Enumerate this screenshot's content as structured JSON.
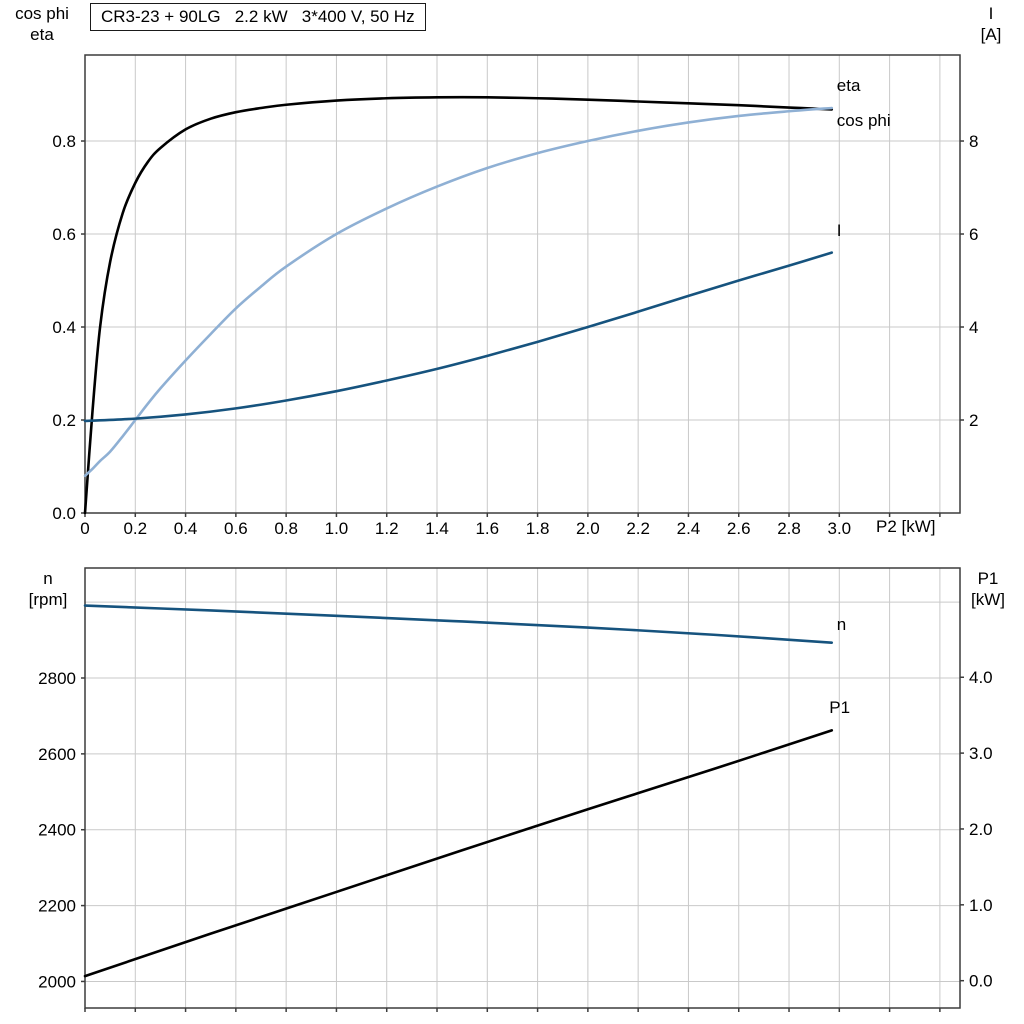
{
  "title": "CR3-23 + 90LG   2.2 kW   3*400 V, 50 Hz",
  "axis_labels": {
    "top_left_line1": "cos phi",
    "top_left_line2": "eta",
    "top_right_line1": "I",
    "top_right_line2": "[A]",
    "x_axis": "P2 [kW]",
    "bottom_left_line1": "n",
    "bottom_left_line2": "[rpm]",
    "bottom_right_line1": "P1",
    "bottom_right_line2": "[kW]"
  },
  "colors": {
    "eta_curve": "#000000",
    "cos_phi_curve": "#8fb0d4",
    "current_curve": "#16537e",
    "n_curve": "#16537e",
    "p1_curve": "#000000",
    "grid": "#c9c9c9",
    "border": "#3c3c3c",
    "background": "#ffffff"
  },
  "chart_data": [
    {
      "type": "line",
      "title": "CR3-23 + 90LG   2.2 kW   3*400 V, 50 Hz",
      "xlabel": "P2 [kW]",
      "ylabel_left": "cos phi / eta",
      "ylabel_right": "I [A]",
      "grid": true,
      "xlim": [
        0,
        3.48
      ],
      "xticks": [
        0,
        0.2,
        0.4,
        0.6,
        0.8,
        1.0,
        1.2,
        1.4,
        1.6,
        1.8,
        2.0,
        2.2,
        2.4,
        2.6,
        2.8,
        3.0,
        3.2,
        3.4
      ],
      "xtick_labels": [
        "0",
        "0.2",
        "0.4",
        "0.6",
        "0.8",
        "1.0",
        "1.2",
        "1.4",
        "1.6",
        "1.8",
        "2.0",
        "2.2",
        "2.4",
        "2.6",
        "2.8",
        "3.0",
        "",
        ""
      ],
      "ylim_left": [
        0,
        0.985
      ],
      "yticks_left": [
        0,
        0.2,
        0.4,
        0.6,
        0.8
      ],
      "ytick_labels_left": [
        "0.0",
        "0.2",
        "0.4",
        "0.6",
        "0.8"
      ],
      "ylim_right": [
        0,
        9.85
      ],
      "yticks_right": [
        2,
        4,
        6,
        8
      ],
      "ytick_labels_right": [
        "2",
        "4",
        "6",
        "8"
      ],
      "series": [
        {
          "name": "eta",
          "label": "eta",
          "axis": "left",
          "color": "eta_curve",
          "label_pos": [
            2.99,
            0.908
          ],
          "x": [
            0,
            0.03,
            0.06,
            0.1,
            0.15,
            0.2,
            0.25,
            0.3,
            0.4,
            0.5,
            0.6,
            0.7,
            0.8,
            1.0,
            1.2,
            1.4,
            1.6,
            1.8,
            2.0,
            2.2,
            2.4,
            2.6,
            2.8,
            2.97
          ],
          "y": [
            0,
            0.22,
            0.4,
            0.54,
            0.645,
            0.71,
            0.755,
            0.785,
            0.825,
            0.848,
            0.862,
            0.871,
            0.878,
            0.887,
            0.892,
            0.894,
            0.894,
            0.892,
            0.889,
            0.885,
            0.881,
            0.877,
            0.872,
            0.868
          ]
        },
        {
          "name": "cos phi",
          "label": "cos phi",
          "axis": "left",
          "color": "cos_phi_curve",
          "label_pos": [
            2.99,
            0.832
          ],
          "x": [
            0,
            0.03,
            0.06,
            0.1,
            0.15,
            0.2,
            0.25,
            0.3,
            0.4,
            0.5,
            0.6,
            0.7,
            0.8,
            1.0,
            1.2,
            1.4,
            1.6,
            1.8,
            2.0,
            2.2,
            2.4,
            2.6,
            2.8,
            2.97
          ],
          "y": [
            0.08,
            0.095,
            0.112,
            0.132,
            0.165,
            0.2,
            0.235,
            0.268,
            0.328,
            0.385,
            0.44,
            0.487,
            0.53,
            0.6,
            0.655,
            0.702,
            0.742,
            0.774,
            0.8,
            0.822,
            0.84,
            0.854,
            0.864,
            0.871
          ]
        },
        {
          "name": "I",
          "label": "I",
          "axis": "right",
          "color": "current_curve",
          "label_pos": [
            2.99,
            5.96
          ],
          "x": [
            0,
            0.2,
            0.4,
            0.6,
            0.8,
            1.0,
            1.2,
            1.4,
            1.6,
            1.8,
            2.0,
            2.2,
            2.4,
            2.6,
            2.8,
            2.97
          ],
          "y": [
            1.98,
            2.03,
            2.12,
            2.25,
            2.42,
            2.62,
            2.85,
            3.1,
            3.38,
            3.68,
            4.0,
            4.33,
            4.67,
            5.0,
            5.32,
            5.6
          ]
        }
      ]
    },
    {
      "type": "line",
      "title": "",
      "xlabel": "",
      "ylabel_left": "n [rpm]",
      "ylabel_right": "P1 [kW]",
      "grid": true,
      "xlim": [
        0,
        3.48
      ],
      "xticks": [
        0,
        0.2,
        0.4,
        0.6,
        0.8,
        1.0,
        1.2,
        1.4,
        1.6,
        1.8,
        2.0,
        2.2,
        2.4,
        2.6,
        2.8,
        3.0,
        3.2,
        3.4
      ],
      "xtick_labels": [],
      "ylim_left": [
        1930,
        3090
      ],
      "yticks_left": [
        2000,
        2200,
        2400,
        2600,
        2800
      ],
      "ytick_labels_left": [
        "2000",
        "2200",
        "2400",
        "2600",
        "2800"
      ],
      "grid_yvals_left": [
        2000,
        2200,
        2400,
        2600,
        2800,
        3000
      ],
      "ylim_right": [
        -0.36,
        5.44
      ],
      "yticks_right": [
        0,
        1,
        2,
        3,
        4
      ],
      "ytick_labels_right": [
        "0.0",
        "1.0",
        "2.0",
        "3.0",
        "4.0"
      ],
      "series": [
        {
          "name": "n",
          "label": "n",
          "axis": "left",
          "color": "n_curve",
          "label_pos": [
            2.99,
            2927
          ],
          "x": [
            0,
            0.5,
            1.0,
            1.5,
            2.0,
            2.5,
            2.97
          ],
          "y": [
            2991,
            2978,
            2964,
            2949,
            2933,
            2914,
            2893
          ]
        },
        {
          "name": "P1",
          "label": "P1",
          "axis": "right",
          "color": "p1_curve",
          "label_pos": [
            2.96,
            3.53
          ],
          "x": [
            0,
            0.5,
            1.0,
            1.5,
            2.0,
            2.5,
            2.97
          ],
          "y": [
            0.06,
            0.62,
            1.17,
            1.72,
            2.26,
            2.79,
            3.3
          ]
        }
      ]
    }
  ]
}
